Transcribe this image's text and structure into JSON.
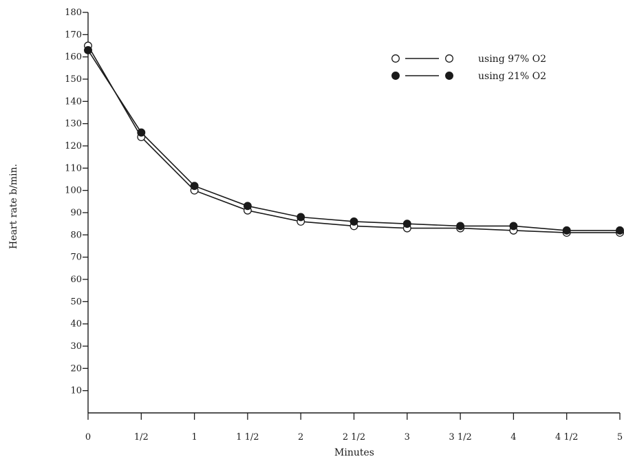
{
  "chart_data": {
    "type": "line",
    "title": "",
    "xlabel": "Minutes",
    "ylabel": "Heart rate b/min.",
    "x": [
      0,
      0.5,
      1,
      1.5,
      2,
      2.5,
      3,
      3.5,
      4,
      4.5,
      5
    ],
    "x_tick_labels": [
      "0",
      "1/2",
      "1",
      "1 1/2",
      "2",
      "2 1/2",
      "3",
      "3 1/2",
      "4",
      "4 1/2",
      "5"
    ],
    "y_ticks": [
      10,
      20,
      30,
      40,
      50,
      60,
      70,
      80,
      90,
      100,
      110,
      120,
      130,
      140,
      150,
      160,
      170,
      180
    ],
    "y_tick_labels": [
      "10",
      "20",
      "30",
      "40",
      "50",
      "60",
      "70",
      "80",
      "90",
      "100",
      "110",
      "120",
      "130",
      "140",
      "150",
      "160",
      "170",
      "180"
    ],
    "xlim": [
      0,
      5
    ],
    "ylim": [
      0,
      180
    ],
    "grid": false,
    "legend_position": "top-right",
    "series": [
      {
        "name": "using 97% O2",
        "marker": "open-circle",
        "color": "#1a1a1a",
        "values": [
          165,
          124,
          100,
          91,
          86,
          84,
          83,
          83,
          82,
          81,
          81
        ]
      },
      {
        "name": "using 21% O2",
        "marker": "filled-circle",
        "color": "#1a1a1a",
        "values": [
          163,
          126,
          102,
          93,
          88,
          86,
          85,
          84,
          84,
          82,
          82
        ]
      }
    ]
  }
}
